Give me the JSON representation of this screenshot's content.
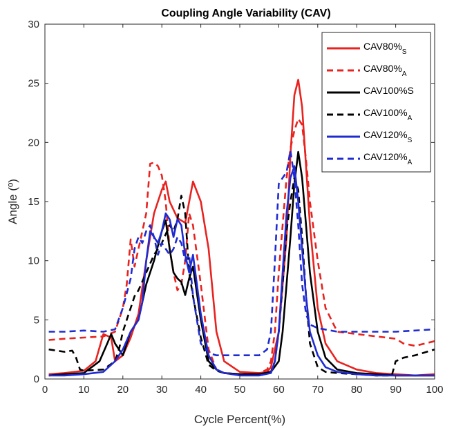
{
  "chart_data": {
    "type": "line",
    "title": "Coupling Angle Variability (CAV)",
    "xlabel": "Cycle Percent(%)",
    "ylabel": "Angle (º)",
    "xlim": [
      0,
      100
    ],
    "ylim": [
      0,
      30
    ],
    "xticks": [
      0,
      10,
      20,
      30,
      40,
      50,
      60,
      70,
      80,
      90,
      100
    ],
    "yticks": [
      0,
      5,
      10,
      15,
      20,
      25,
      30
    ],
    "grid": false,
    "legend_position": "top-right",
    "series": [
      {
        "name": "CAV80%S",
        "legend_main": "CAV80%",
        "legend_sub": "S",
        "color": "#e8231f",
        "dash": "solid",
        "x": [
          1,
          5,
          10,
          13,
          15,
          17,
          18,
          20,
          22,
          24,
          26,
          28,
          30,
          31,
          32,
          34,
          36,
          38,
          40,
          42,
          44,
          46,
          50,
          55,
          57,
          58,
          60,
          62,
          63,
          64,
          65,
          66,
          67,
          68,
          70,
          72,
          75,
          80,
          85,
          90,
          95,
          100
        ],
        "y": [
          0.4,
          0.5,
          0.7,
          1.5,
          3.8,
          3.5,
          1.5,
          2.0,
          3.5,
          5.5,
          10.0,
          14.0,
          16.0,
          16.7,
          15.0,
          13.6,
          13.2,
          16.7,
          15.0,
          11.0,
          4.0,
          1.5,
          0.6,
          0.5,
          0.6,
          1.0,
          4.0,
          12.0,
          19.0,
          24.0,
          25.3,
          23.0,
          18.0,
          13.0,
          6.0,
          3.0,
          1.5,
          0.8,
          0.5,
          0.4,
          0.3,
          0.4
        ]
      },
      {
        "name": "CAV80%A",
        "legend_main": "CAV80%",
        "legend_sub": "A",
        "color": "#e8231f",
        "dash": "dashed",
        "x": [
          1,
          5,
          10,
          15,
          18,
          20,
          21,
          22,
          23,
          24,
          26,
          27,
          28,
          29,
          30,
          31,
          32,
          33,
          34,
          35,
          36,
          37,
          38,
          40,
          42,
          44,
          46,
          50,
          55,
          57,
          58,
          59,
          60,
          61,
          62,
          63,
          64,
          65,
          66,
          67,
          68,
          70,
          72,
          75,
          80,
          85,
          90,
          92,
          95,
          100
        ],
        "y": [
          3.3,
          3.4,
          3.5,
          3.6,
          4.0,
          6.0,
          8.0,
          11.8,
          9.5,
          11.0,
          14.0,
          18.2,
          18.3,
          18.0,
          17.2,
          15.0,
          11.0,
          9.0,
          7.5,
          8.0,
          10.0,
          14.0,
          13.0,
          8.0,
          2.5,
          0.8,
          0.5,
          0.4,
          0.5,
          0.8,
          1.5,
          4.0,
          9.0,
          13.0,
          17.0,
          19.5,
          21.0,
          22.0,
          21.5,
          18.5,
          15.0,
          10.0,
          6.0,
          4.0,
          3.8,
          3.6,
          3.4,
          3.0,
          2.8,
          3.2
        ]
      },
      {
        "name": "CAV100%S",
        "legend_main": "CAV100%S",
        "legend_sub": "",
        "color": "#000000",
        "dash": "solid",
        "x": [
          1,
          5,
          10,
          14,
          16,
          17,
          18,
          20,
          22,
          24,
          26,
          28,
          30,
          31,
          32,
          33,
          34,
          35,
          36,
          37,
          38,
          40,
          42,
          44,
          46,
          50,
          55,
          58,
          60,
          61,
          62,
          63,
          64,
          65,
          66,
          67,
          68,
          70,
          72,
          75,
          80,
          85,
          90,
          95,
          100
        ],
        "y": [
          0.3,
          0.4,
          0.5,
          1.5,
          3.0,
          3.8,
          3.0,
          2.0,
          4.0,
          5.0,
          8.0,
          10.0,
          12.5,
          13.4,
          11.0,
          9.0,
          8.5,
          8.2,
          7.1,
          8.5,
          9.5,
          5.0,
          1.5,
          0.8,
          0.5,
          0.4,
          0.4,
          0.6,
          1.5,
          4.0,
          8.0,
          12.0,
          16.5,
          19.2,
          17.0,
          13.0,
          9.0,
          4.0,
          1.8,
          0.8,
          0.5,
          0.4,
          0.3,
          0.3,
          0.3
        ]
      },
      {
        "name": "CAV100%A",
        "legend_main": "CAV100%",
        "legend_sub": "A",
        "color": "#000000",
        "dash": "dashed",
        "x": [
          1,
          3,
          5,
          7,
          8,
          9,
          10,
          15,
          18,
          19,
          20,
          21,
          22,
          23,
          24,
          26,
          28,
          30,
          32,
          33,
          34,
          35,
          36,
          37,
          38,
          40,
          42,
          44,
          46,
          50,
          55,
          58,
          59,
          60,
          61,
          62,
          63,
          64,
          65,
          66,
          67,
          68,
          70,
          72,
          75,
          80,
          85,
          89,
          90,
          92,
          95,
          100
        ],
        "y": [
          2.5,
          2.4,
          2.3,
          2.4,
          1.8,
          0.8,
          0.7,
          0.8,
          1.5,
          2.5,
          4.0,
          5.0,
          6.0,
          7.0,
          7.5,
          9.0,
          10.5,
          11.5,
          13.0,
          12.5,
          13.5,
          15.5,
          14.0,
          9.0,
          7.0,
          3.5,
          1.2,
          0.7,
          0.5,
          0.4,
          0.4,
          0.6,
          1.5,
          4.0,
          8.0,
          12.5,
          15.0,
          17.0,
          16.0,
          12.0,
          7.0,
          3.0,
          1.0,
          0.6,
          0.5,
          0.4,
          0.3,
          0.3,
          1.5,
          1.8,
          2.0,
          2.5
        ]
      },
      {
        "name": "CAV120%S",
        "legend_main": "CAV120%",
        "legend_sub": "S",
        "color": "#1f2bd1",
        "dash": "solid",
        "x": [
          1,
          5,
          10,
          15,
          18,
          20,
          22,
          24,
          25,
          26,
          27,
          28,
          29,
          30,
          31,
          32,
          33,
          34,
          35,
          36,
          37,
          38,
          40,
          42,
          44,
          46,
          50,
          55,
          58,
          59,
          60,
          61,
          62,
          63,
          64,
          65,
          66,
          67,
          68,
          70,
          72,
          75,
          80,
          85,
          90,
          95,
          100
        ],
        "y": [
          0.3,
          0.3,
          0.4,
          0.6,
          1.5,
          2.5,
          4.0,
          5.0,
          6.5,
          10.0,
          12.5,
          12.0,
          11.5,
          12.5,
          14.0,
          13.5,
          12.0,
          13.5,
          13.0,
          10.5,
          9.0,
          10.5,
          5.5,
          2.0,
          0.8,
          0.5,
          0.3,
          0.3,
          0.5,
          1.5,
          4.0,
          9.0,
          14.0,
          17.0,
          18.0,
          15.0,
          11.0,
          7.0,
          4.0,
          2.0,
          1.0,
          0.6,
          0.4,
          0.3,
          0.3,
          0.3,
          0.3
        ]
      },
      {
        "name": "CAV120%A",
        "legend_main": "CAV120%",
        "legend_sub": "A",
        "color": "#1f2bd1",
        "dash": "dashed",
        "x": [
          1,
          5,
          10,
          15,
          18,
          20,
          22,
          23,
          24,
          25,
          26,
          27,
          28,
          29,
          30,
          31,
          32,
          33,
          34,
          35,
          36,
          37,
          38,
          40,
          42,
          44,
          46,
          50,
          55,
          57,
          58,
          59,
          60,
          61,
          62,
          63,
          64,
          65,
          66,
          67,
          68,
          70,
          75,
          80,
          85,
          90,
          95,
          100
        ],
        "y": [
          4.0,
          4.0,
          4.1,
          4.0,
          4.2,
          6.0,
          8.5,
          11.0,
          12.0,
          11.5,
          12.5,
          13.0,
          12.0,
          10.5,
          11.5,
          11.0,
          10.5,
          11.0,
          12.0,
          11.5,
          10.0,
          10.5,
          7.0,
          3.0,
          2.2,
          2.0,
          2.0,
          2.0,
          2.0,
          2.5,
          4.0,
          10.0,
          16.5,
          17.0,
          17.5,
          19.3,
          17.0,
          13.0,
          8.0,
          5.5,
          4.6,
          4.3,
          4.0,
          4.0,
          4.0,
          4.0,
          4.1,
          4.2
        ]
      }
    ]
  }
}
